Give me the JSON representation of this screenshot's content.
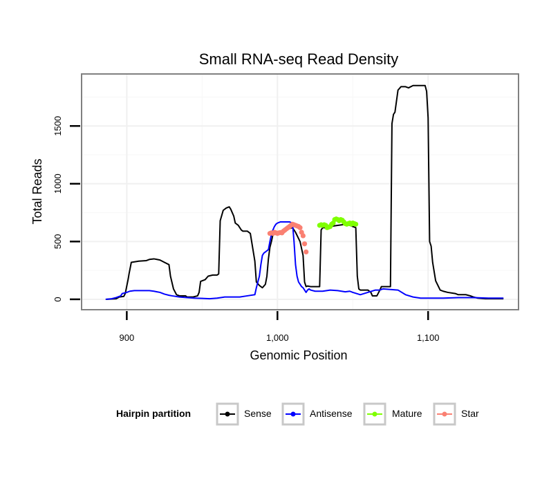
{
  "chart_data": {
    "type": "line",
    "title": "Small RNA-seq Read Density",
    "xlabel": "Genomic Position",
    "ylabel": "Total Reads",
    "xlim": [
      870,
      1160
    ],
    "ylim": [
      -90,
      1950
    ],
    "x_ticks": [
      900,
      1000,
      1100
    ],
    "x_tick_labels": [
      "900",
      "1,000",
      "1,100"
    ],
    "y_ticks": [
      0,
      500,
      1000,
      1500
    ],
    "y_tick_labels": [
      "0",
      "500",
      "1000",
      "1500"
    ],
    "grid": true,
    "legend": {
      "title": "Hairpin partition",
      "position": "bottom",
      "entries": [
        {
          "label": "Sense",
          "color": "#000000"
        },
        {
          "label": "Antisense",
          "color": "#0000ff"
        },
        {
          "label": "Mature",
          "color": "#7fff00"
        },
        {
          "label": "Star",
          "color": "#fa8072"
        }
      ]
    },
    "series": [
      {
        "name": "Sense",
        "color": "#000000",
        "style": "line",
        "x": [
          886,
          893,
          895,
          898,
          899,
          901,
          901.5,
          903,
          908,
          913,
          915,
          918,
          920,
          922,
          925,
          928,
          929,
          931,
          933,
          935,
          939,
          940,
          941,
          943,
          944,
          947,
          948,
          949,
          950,
          952,
          954,
          957,
          958,
          959,
          960,
          961,
          962,
          964,
          966,
          968,
          969,
          971,
          972,
          974,
          975,
          976,
          977,
          980,
          982,
          985,
          986,
          988,
          990,
          992,
          993,
          994,
          995,
          996,
          997,
          998,
          999,
          1000,
          1002,
          1005,
          1010,
          1012,
          1015,
          1017,
          1018,
          1019,
          1020,
          1022,
          1025,
          1028,
          1029,
          1030,
          1033,
          1035,
          1040,
          1043,
          1045,
          1048,
          1050,
          1052,
          1053,
          1054,
          1055,
          1060,
          1062,
          1063,
          1066,
          1068,
          1069,
          1072,
          1075,
          1076,
          1077,
          1078,
          1080,
          1082,
          1085,
          1087,
          1090,
          1092,
          1095,
          1098,
          1099,
          1100,
          1101,
          1102,
          1103,
          1105,
          1108,
          1110,
          1113,
          1118,
          1120,
          1125,
          1128,
          1130,
          1133,
          1138,
          1150
        ],
        "values": [
          0,
          5,
          20,
          25,
          50,
          180,
          220,
          320,
          330,
          335,
          345,
          350,
          345,
          340,
          320,
          300,
          200,
          90,
          40,
          30,
          30,
          20,
          20,
          20,
          20,
          30,
          60,
          155,
          160,
          170,
          200,
          210,
          210,
          210,
          210,
          220,
          680,
          770,
          790,
          800,
          780,
          720,
          660,
          640,
          620,
          600,
          590,
          590,
          570,
          330,
          150,
          120,
          100,
          130,
          200,
          350,
          450,
          500,
          560,
          570,
          580,
          585,
          590,
          600,
          620,
          580,
          500,
          380,
          150,
          110,
          115,
          110,
          110,
          110,
          600,
          620,
          620,
          630,
          640,
          645,
          650,
          640,
          630,
          620,
          200,
          90,
          80,
          80,
          60,
          30,
          30,
          80,
          110,
          110,
          110,
          1520,
          1600,
          1620,
          1810,
          1840,
          1840,
          1830,
          1850,
          1850,
          1850,
          1850,
          1800,
          1570,
          500,
          460,
          320,
          160,
          80,
          70,
          60,
          50,
          40,
          40,
          30,
          20,
          10,
          5,
          5
        ]
      },
      {
        "name": "Antisense",
        "color": "#0000ff",
        "style": "line",
        "x": [
          886,
          890,
          893,
          895,
          896,
          897,
          900,
          902,
          905,
          910,
          915,
          918,
          920,
          922,
          925,
          928,
          930,
          935,
          940,
          945,
          950,
          955,
          960,
          965,
          970,
          975,
          980,
          985,
          986,
          987,
          988,
          989,
          990,
          991,
          992,
          993,
          994,
          995,
          996,
          997,
          998,
          999,
          1000,
          1002,
          1005,
          1008,
          1010,
          1011,
          1012,
          1013,
          1014,
          1015,
          1016,
          1017,
          1018,
          1019,
          1020,
          1021,
          1022,
          1025,
          1030,
          1035,
          1040,
          1045,
          1048,
          1050,
          1055,
          1060,
          1065,
          1068,
          1070,
          1075,
          1080,
          1085,
          1090,
          1095,
          1100,
          1110,
          1120,
          1130,
          1140,
          1150
        ],
        "values": [
          0,
          5,
          15,
          25,
          30,
          50,
          60,
          70,
          75,
          75,
          75,
          70,
          65,
          60,
          45,
          35,
          30,
          20,
          15,
          10,
          8,
          5,
          10,
          20,
          20,
          20,
          30,
          40,
          100,
          150,
          200,
          300,
          380,
          400,
          410,
          420,
          430,
          500,
          560,
          600,
          630,
          650,
          660,
          670,
          670,
          670,
          660,
          500,
          300,
          200,
          150,
          130,
          110,
          100,
          80,
          60,
          80,
          90,
          80,
          70,
          70,
          80,
          75,
          65,
          70,
          60,
          40,
          60,
          80,
          80,
          90,
          85,
          80,
          40,
          20,
          10,
          10,
          10,
          15,
          15,
          10,
          10
        ]
      },
      {
        "name": "Mature",
        "color": "#7fff00",
        "style": "points",
        "x": [
          1028,
          1029,
          1030,
          1031,
          1032,
          1033,
          1034,
          1035,
          1036,
          1037,
          1038,
          1039,
          1040,
          1041,
          1042,
          1043,
          1044,
          1045,
          1046,
          1047,
          1048,
          1049,
          1050,
          1051,
          1052
        ],
        "values": [
          640,
          645,
          640,
          645,
          640,
          620,
          625,
          630,
          650,
          660,
          690,
          695,
          690,
          680,
          690,
          685,
          670,
          655,
          650,
          655,
          660,
          650,
          660,
          655,
          650
        ]
      },
      {
        "name": "Star",
        "color": "#fa8072",
        "style": "points",
        "x": [
          995,
          996,
          997,
          998,
          999,
          1000,
          1001,
          1002,
          1003,
          1004,
          1005,
          1006,
          1007,
          1008,
          1009,
          1010,
          1011,
          1012,
          1013,
          1014,
          1015,
          1016,
          1017,
          1018,
          1019
        ],
        "values": [
          570,
          575,
          570,
          580,
          575,
          570,
          575,
          578,
          575,
          590,
          600,
          610,
          620,
          630,
          640,
          650,
          645,
          640,
          635,
          630,
          620,
          580,
          550,
          480,
          410
        ]
      }
    ]
  }
}
